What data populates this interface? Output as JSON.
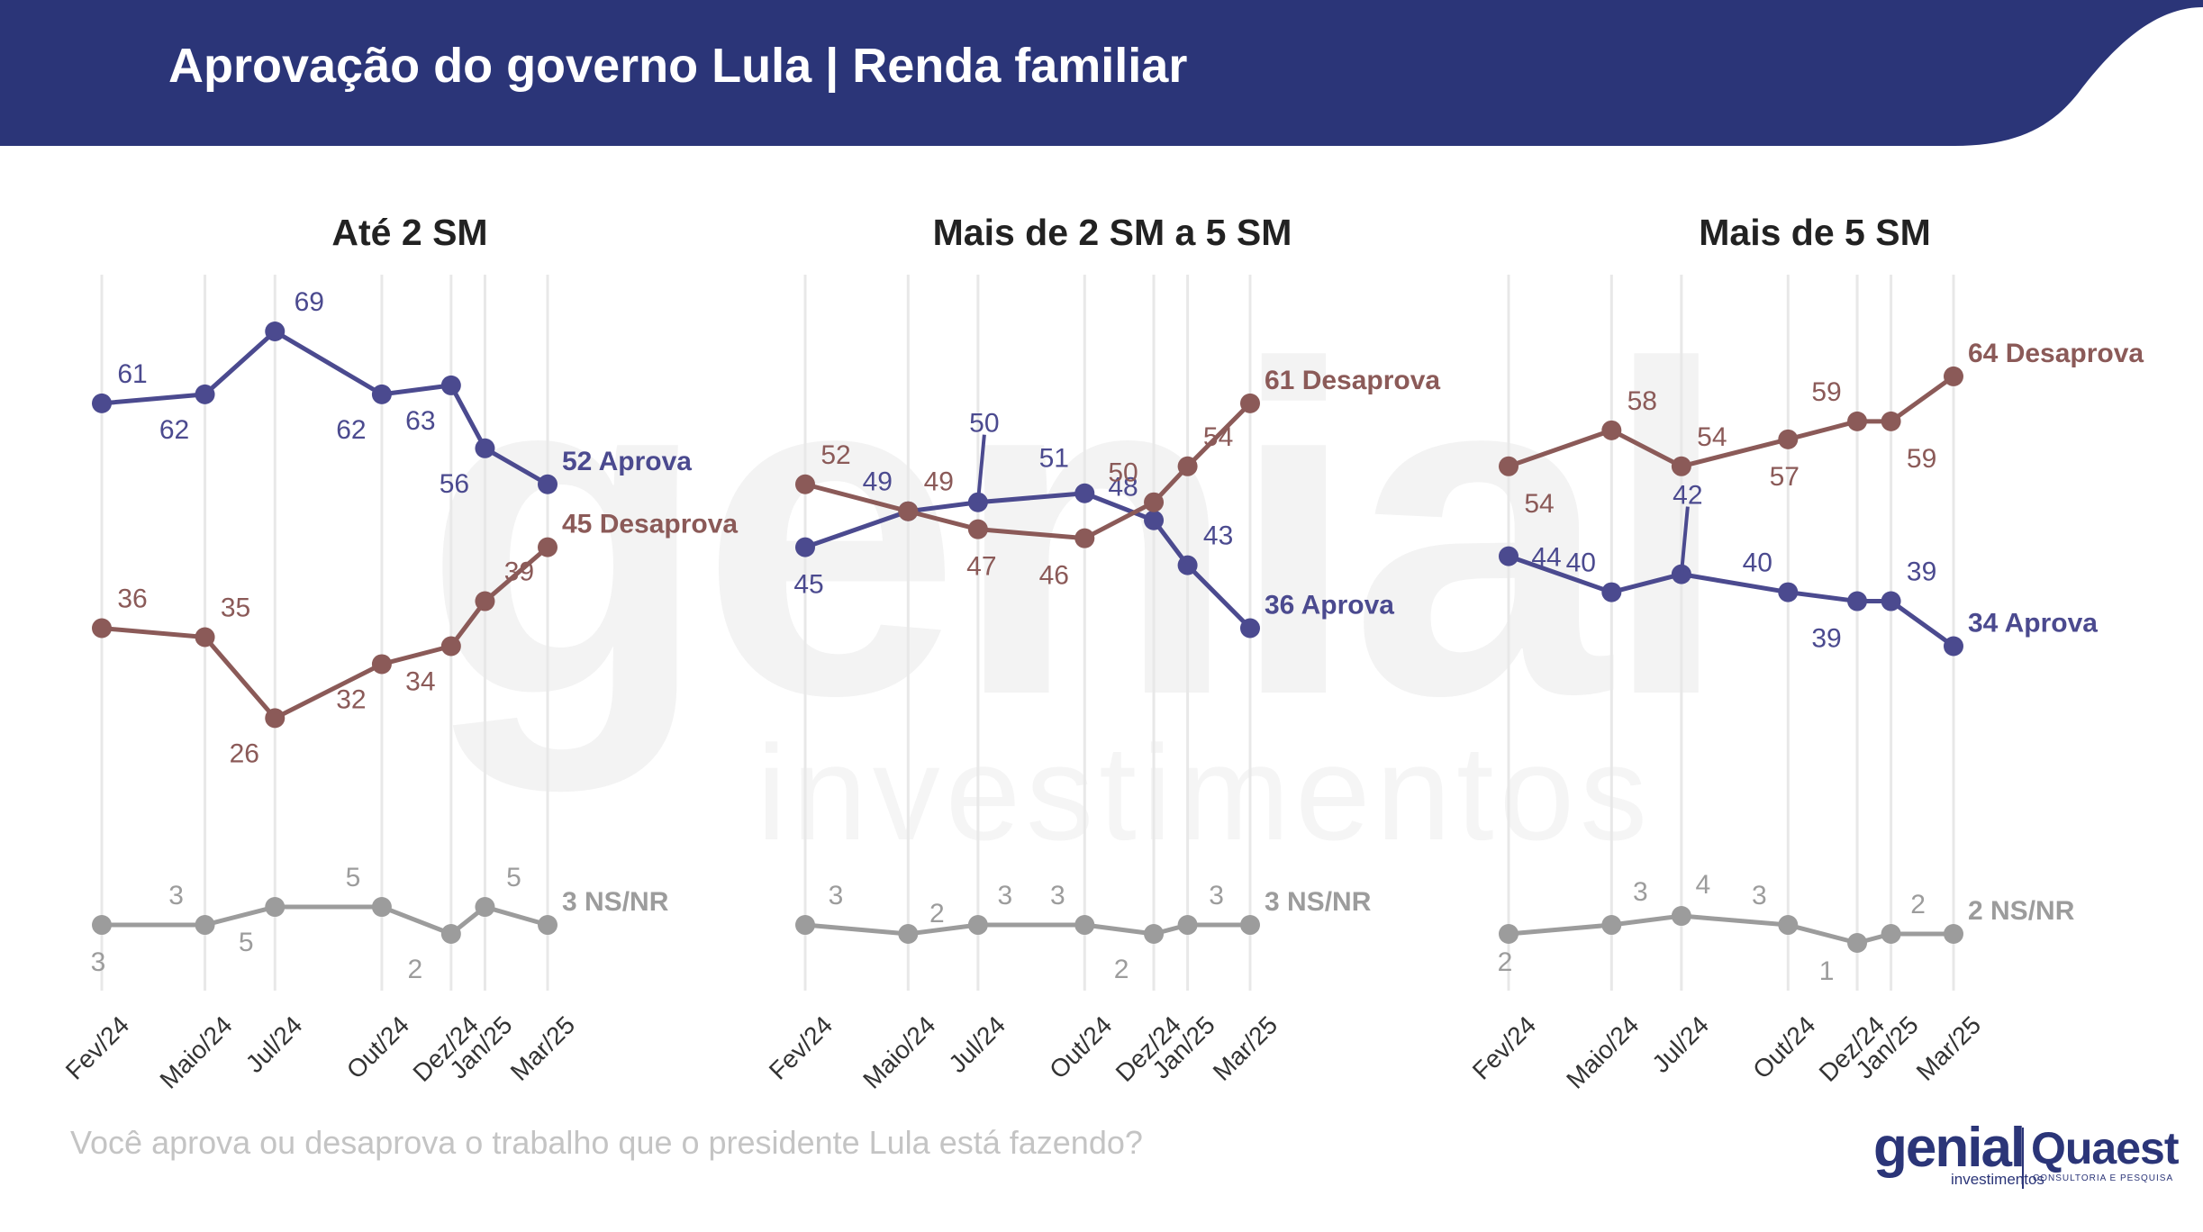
{
  "header": {
    "title": "Aprovação do governo Lula | Renda familiar",
    "background_color": "#2b3578"
  },
  "watermark": {
    "big": "genial",
    "small": "investimentos"
  },
  "footer": {
    "question": "Você aprova ou desaprova o trabalho que o presidente Lula está fazendo?",
    "logo_genial": "genial",
    "logo_genial_sub": "investimentos",
    "logo_quaest": "Quaest",
    "logo_quaest_sub": "CONSULTORIA E PESQUISA"
  },
  "colors": {
    "aprova": "#4b4a8f",
    "desaprova": "#8b5a58",
    "nsnr": "#9c9c9c",
    "gridline": "#e8e8e8"
  },
  "chart_data": [
    {
      "type": "line",
      "title": "Até 2 SM",
      "x": [
        "Fev/24",
        "Maio/24",
        "Jul/24",
        "Out/24",
        "Dez/24",
        "Jan/25",
        "Mar/25"
      ],
      "series": [
        {
          "name": "Aprova",
          "end_label": "52 Aprova",
          "values": [
            61,
            62,
            69,
            62,
            63,
            56,
            52
          ]
        },
        {
          "name": "Desaprova",
          "end_label": "45 Desaprova",
          "values": [
            36,
            35,
            26,
            32,
            34,
            39,
            45
          ]
        },
        {
          "name": "NS/NR",
          "end_label": "3 NS/NR",
          "values": [
            3,
            3,
            5,
            5,
            2,
            5,
            3
          ]
        }
      ]
    },
    {
      "type": "line",
      "title": "Mais de 2 SM a 5 SM",
      "x": [
        "Fev/24",
        "Maio/24",
        "Jul/24",
        "Out/24",
        "Dez/24",
        "Jan/25",
        "Mar/25"
      ],
      "series": [
        {
          "name": "Aprova",
          "end_label": "36 Aprova",
          "values": [
            45,
            49,
            50,
            51,
            48,
            43,
            36
          ]
        },
        {
          "name": "Desaprova",
          "end_label": "61 Desaprova",
          "values": [
            52,
            49,
            47,
            46,
            50,
            54,
            61
          ]
        },
        {
          "name": "NS/NR",
          "end_label": "3 NS/NR",
          "values": [
            3,
            2,
            3,
            3,
            2,
            3,
            3
          ]
        }
      ]
    },
    {
      "type": "line",
      "title": "Mais de 5 SM",
      "x": [
        "Fev/24",
        "Maio/24",
        "Jul/24",
        "Out/24",
        "Dez/24",
        "Jan/25",
        "Mar/25"
      ],
      "series": [
        {
          "name": "Aprova",
          "end_label": "34 Aprova",
          "values": [
            44,
            40,
            42,
            40,
            39,
            39,
            34
          ]
        },
        {
          "name": "Desaprova",
          "end_label": "64 Desaprova",
          "values": [
            54,
            58,
            54,
            57,
            59,
            59,
            64
          ]
        },
        {
          "name": "NS/NR",
          "end_label": "2 NS/NR",
          "values": [
            2,
            3,
            4,
            3,
            1,
            2,
            2
          ]
        }
      ]
    }
  ]
}
